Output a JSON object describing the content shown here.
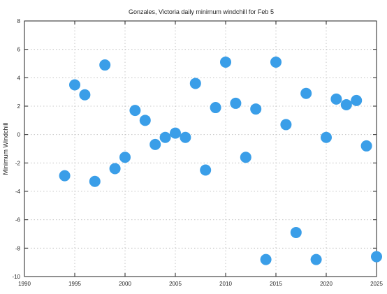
{
  "chart_data": {
    "type": "scatter",
    "title": "Gonzales, Victoria daily minimum windchill for Feb 5",
    "xlabel": "",
    "ylabel": "Minimum Windchill",
    "xlim": [
      1990,
      2025
    ],
    "ylim": [
      -10,
      8
    ],
    "xticks": [
      1990,
      1995,
      2000,
      2005,
      2010,
      2015,
      2020,
      2025
    ],
    "yticks": [
      -10,
      -8,
      -6,
      -4,
      -2,
      0,
      2,
      4,
      6,
      8
    ],
    "grid": true,
    "marker_color": "#3a9ee8",
    "points": [
      {
        "x": 1994,
        "y": -2.9
      },
      {
        "x": 1995,
        "y": 3.5
      },
      {
        "x": 1996,
        "y": 2.8
      },
      {
        "x": 1997,
        "y": -3.3
      },
      {
        "x": 1998,
        "y": 4.9
      },
      {
        "x": 1999,
        "y": -2.4
      },
      {
        "x": 2000,
        "y": -1.6
      },
      {
        "x": 2001,
        "y": 1.7
      },
      {
        "x": 2002,
        "y": 1.0
      },
      {
        "x": 2003,
        "y": -0.7
      },
      {
        "x": 2004,
        "y": -0.2
      },
      {
        "x": 2005,
        "y": 0.1
      },
      {
        "x": 2006,
        "y": -0.2
      },
      {
        "x": 2007,
        "y": 3.6
      },
      {
        "x": 2008,
        "y": -2.5
      },
      {
        "x": 2009,
        "y": 1.9
      },
      {
        "x": 2010,
        "y": 5.1
      },
      {
        "x": 2011,
        "y": 2.2
      },
      {
        "x": 2012,
        "y": -1.6
      },
      {
        "x": 2013,
        "y": 1.8
      },
      {
        "x": 2014,
        "y": -8.8
      },
      {
        "x": 2015,
        "y": 5.1
      },
      {
        "x": 2016,
        "y": 0.7
      },
      {
        "x": 2017,
        "y": -6.9
      },
      {
        "x": 2018,
        "y": 2.9
      },
      {
        "x": 2019,
        "y": -8.8
      },
      {
        "x": 2020,
        "y": -0.2
      },
      {
        "x": 2021,
        "y": 2.5
      },
      {
        "x": 2022,
        "y": 2.1
      },
      {
        "x": 2023,
        "y": 2.4
      },
      {
        "x": 2024,
        "y": -0.8
      },
      {
        "x": 2025,
        "y": -8.6
      }
    ]
  }
}
